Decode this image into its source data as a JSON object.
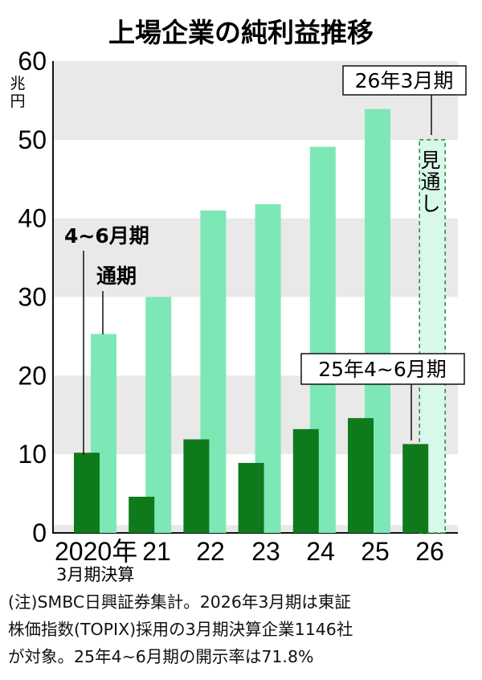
{
  "chart_data": {
    "type": "bar",
    "title": "上場企業の純利益推移",
    "ylabel": "兆円",
    "ylim": [
      0,
      60
    ],
    "yticks": [
      "0",
      "10",
      "20",
      "30",
      "40",
      "50",
      "60"
    ],
    "categories": [
      "2020年",
      "21",
      "22",
      "23",
      "24",
      "25",
      "26"
    ],
    "x_sublabel": "3月期決算",
    "series": [
      {
        "name": "4~6月期",
        "values": [
          10.2,
          4.6,
          11.9,
          8.9,
          13.2,
          14.6,
          11.3
        ],
        "color": "#0f7a1c"
      },
      {
        "name": "通期",
        "values": [
          25.3,
          30.0,
          41.0,
          41.8,
          49.1,
          53.9,
          50.0
        ],
        "color": "#7de8b6"
      }
    ],
    "forecast_label": "見通し",
    "callouts": {
      "forecast_period": "26年3月期",
      "latest_quarter": "25年4~6月期"
    },
    "grid_bands": true
  },
  "note": {
    "lines": [
      "(注)SMBC日興証券集計。2026年3月期は東証",
      "株価指数(TOPIX)採用の3月期決算企業1146社",
      "が対象。25年4~6月期の開示率は71.8%"
    ]
  }
}
